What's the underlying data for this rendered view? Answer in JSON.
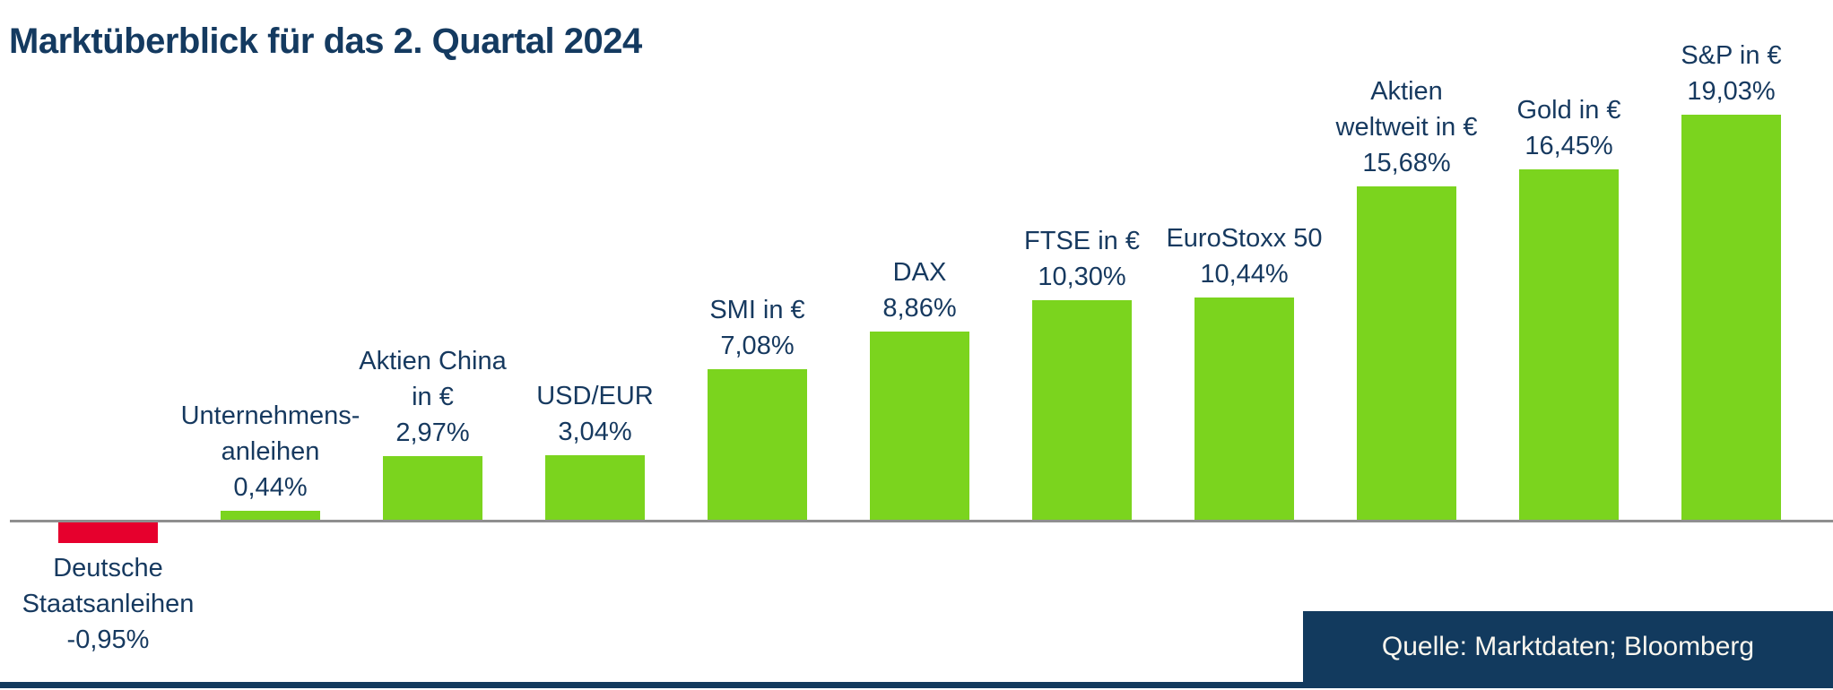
{
  "header": {
    "title": "Marktüberblick für das 2. Quartal 2024"
  },
  "chart_data": {
    "type": "bar",
    "title": "Marktüberblick für das 2. Quartal 2024",
    "xlabel": "",
    "ylabel": "",
    "unit": "%",
    "ylim": [
      -2,
      20
    ],
    "grid": false,
    "legend": false,
    "value_label_position": "outside-end",
    "axis": "baseline-only",
    "categories": [
      "Deutsche Staatsanleihen",
      "Unternehmensanleihen",
      "Aktien China in €",
      "USD/EUR",
      "SMI in €",
      "DAX",
      "FTSE in €",
      "EuroStoxx 50",
      "Aktien weltweit in €",
      "Gold in €",
      "S&P in €"
    ],
    "values": [
      -0.95,
      0.44,
      2.97,
      3.04,
      7.08,
      8.86,
      10.3,
      10.44,
      15.68,
      16.45,
      19.03
    ],
    "value_labels": [
      "-0,95%",
      "0,44%",
      "2,97%",
      "3,04%",
      "7,08%",
      "8,86%",
      "10,30%",
      "10,44%",
      "15,68%",
      "16,45%",
      "19,03%"
    ],
    "label_lines": [
      [
        "Deutsche",
        "Staatsanleihen"
      ],
      [
        "Unternehmens-",
        "anleihen"
      ],
      [
        "Aktien China",
        "in €"
      ],
      [
        "USD/EUR"
      ],
      [
        "SMI in €"
      ],
      [
        "DAX"
      ],
      [
        "FTSE in €"
      ],
      [
        "EuroStoxx 50"
      ],
      [
        "Aktien",
        "weltweit in €"
      ],
      [
        "Gold in €"
      ],
      [
        "S&P in €"
      ]
    ],
    "ids": [
      "deutsche-staatsanleihen",
      "unternehmensanleihen",
      "aktien-china",
      "usd-eur",
      "smi",
      "dax",
      "ftse",
      "eurostoxx-50",
      "aktien-weltweit",
      "gold",
      "sp"
    ],
    "positive_color": "#7bd41e",
    "negative_color": "#e6002d",
    "label_color": "#16395f",
    "title_color": "#143a60",
    "baseline_color": "#8f8f8f"
  },
  "source": {
    "label": "Quelle: Marktdaten; Bloomberg",
    "bg_color": "#123a5e",
    "text_color": "#fbf7ef"
  }
}
